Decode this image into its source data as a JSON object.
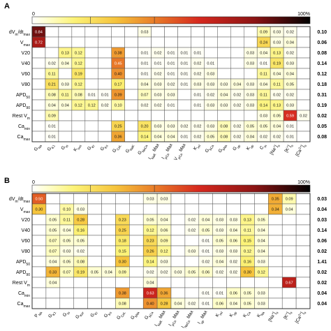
{
  "chart_data": [
    {
      "type": "heatmap",
      "panel": "A",
      "colorbar": {
        "min_label": "0",
        "max_label": "100%"
      },
      "rows": [
        "dV_m/dt_max",
        "V_max",
        "V20",
        "V40",
        "V60",
        "V80",
        "APD_50",
        "APD_90",
        "Rest V_m",
        "Ca_min",
        "Ca_max"
      ],
      "columns": [
        "G_Na",
        "G_K1",
        "G_to",
        "K_sus",
        "G_Kr",
        "G_Ks",
        "G_CaL",
        "G_NaK",
        "G_NaCa",
        "I_NaK Max",
        "I_pCa Max",
        "V_pCa Max",
        "K_rel",
        "G_bCa",
        "G_bNa",
        "G_up",
        "K_up",
        "C_m",
        "[Na+]_o",
        "[K+]_o",
        "[Ca2+]_o"
      ],
      "row_totals": [
        "0.10",
        "0.06",
        "0.08",
        "0.14",
        "0.12",
        "0.18",
        "0.31",
        "0.19",
        "0.02",
        "0.05",
        "0.08"
      ],
      "cells": [
        [
          0,
          0,
          0.84
        ],
        [
          0,
          8,
          0.03
        ],
        [
          0,
          17,
          0.09
        ],
        [
          0,
          18,
          0.03
        ],
        [
          0,
          19,
          0.02
        ],
        [
          1,
          0,
          0.72
        ],
        [
          1,
          17,
          0.24
        ],
        [
          1,
          18,
          0.03
        ],
        [
          1,
          19,
          0.04
        ],
        [
          2,
          2,
          0.13
        ],
        [
          2,
          3,
          0.12
        ],
        [
          2,
          6,
          0.38
        ],
        [
          2,
          8,
          0.01
        ],
        [
          2,
          9,
          0.02
        ],
        [
          2,
          10,
          0.01
        ],
        [
          2,
          11,
          0.01
        ],
        [
          2,
          12,
          0.01
        ],
        [
          2,
          16,
          0.03
        ],
        [
          2,
          17,
          0.04
        ],
        [
          2,
          18,
          0.13
        ],
        [
          2,
          19,
          0.02
        ],
        [
          3,
          1,
          0.02
        ],
        [
          3,
          2,
          0.04
        ],
        [
          3,
          3,
          0.12
        ],
        [
          3,
          6,
          0.45
        ],
        [
          3,
          8,
          0.01
        ],
        [
          3,
          9,
          0.01
        ],
        [
          3,
          10,
          0.01
        ],
        [
          3,
          11,
          0.01
        ],
        [
          3,
          12,
          0.02
        ],
        [
          3,
          13,
          0.01
        ],
        [
          3,
          16,
          0.03
        ],
        [
          3,
          17,
          0.01
        ],
        [
          3,
          18,
          0.19
        ],
        [
          3,
          19,
          0.03
        ],
        [
          4,
          1,
          0.11
        ],
        [
          4,
          3,
          0.19
        ],
        [
          4,
          6,
          0.4
        ],
        [
          4,
          8,
          0.01
        ],
        [
          4,
          9,
          0.02
        ],
        [
          4,
          10,
          0.01
        ],
        [
          4,
          11,
          0.01
        ],
        [
          4,
          12,
          0.02
        ],
        [
          4,
          13,
          0.03
        ],
        [
          4,
          17,
          0.11
        ],
        [
          4,
          18,
          0.04
        ],
        [
          4,
          19,
          0.04
        ],
        [
          5,
          1,
          0.21
        ],
        [
          5,
          2,
          0.03
        ],
        [
          5,
          3,
          0.12
        ],
        [
          5,
          6,
          0.17
        ],
        [
          5,
          8,
          0.04
        ],
        [
          5,
          9,
          0.03
        ],
        [
          5,
          10,
          0.02
        ],
        [
          5,
          11,
          0.01
        ],
        [
          5,
          12,
          0.03
        ],
        [
          5,
          13,
          0.03
        ],
        [
          5,
          14,
          0.03
        ],
        [
          5,
          15,
          0.04
        ],
        [
          5,
          16,
          0.03
        ],
        [
          5,
          17,
          0.04
        ],
        [
          5,
          18,
          0.11
        ],
        [
          5,
          19,
          0.05
        ],
        [
          6,
          1,
          0.08
        ],
        [
          6,
          2,
          0.11
        ],
        [
          6,
          3,
          0.08
        ],
        [
          6,
          4,
          0.01
        ],
        [
          6,
          5,
          0.01
        ],
        [
          6,
          6,
          0.39
        ],
        [
          6,
          8,
          0.07
        ],
        [
          6,
          9,
          0.03
        ],
        [
          6,
          10,
          0.03
        ],
        [
          6,
          12,
          0.01
        ],
        [
          6,
          13,
          0.02
        ],
        [
          6,
          14,
          0.04
        ],
        [
          6,
          15,
          0.02
        ],
        [
          6,
          16,
          0.03
        ],
        [
          6,
          17,
          0.11
        ],
        [
          6,
          18,
          0.02
        ],
        [
          6,
          19,
          0.02
        ],
        [
          7,
          1,
          0.04
        ],
        [
          7,
          2,
          0.04
        ],
        [
          7,
          3,
          0.12
        ],
        [
          7,
          4,
          0.12
        ],
        [
          7,
          5,
          0.02
        ],
        [
          7,
          6,
          0.1
        ],
        [
          7,
          8,
          0.02
        ],
        [
          7,
          9,
          0.02
        ],
        [
          7,
          10,
          0.01
        ],
        [
          7,
          12,
          0.01
        ],
        [
          7,
          13,
          0.03
        ],
        [
          7,
          14,
          0.03
        ],
        [
          7,
          15,
          0.02
        ],
        [
          7,
          16,
          0.03
        ],
        [
          7,
          17,
          0.14
        ],
        [
          7,
          18,
          0.13
        ],
        [
          7,
          19,
          0.03
        ],
        [
          8,
          1,
          0.09
        ],
        [
          8,
          17,
          0.03
        ],
        [
          8,
          18,
          0.05
        ],
        [
          8,
          19,
          0.59
        ],
        [
          8,
          20,
          0.02
        ],
        [
          9,
          1,
          0.01
        ],
        [
          9,
          6,
          0.25
        ],
        [
          9,
          8,
          0.2
        ],
        [
          9,
          9,
          0.03
        ],
        [
          9,
          10,
          0.03
        ],
        [
          9,
          11,
          0.02
        ],
        [
          9,
          12,
          0.02
        ],
        [
          9,
          13,
          0.03
        ],
        [
          9,
          14,
          0.08
        ],
        [
          9,
          15,
          0.02
        ],
        [
          9,
          16,
          0.05
        ],
        [
          9,
          17,
          0.05
        ],
        [
          9,
          18,
          0.04
        ],
        [
          9,
          19,
          0.01
        ],
        [
          10,
          1,
          0.01
        ],
        [
          10,
          6,
          0.36
        ],
        [
          10,
          8,
          0.14
        ],
        [
          10,
          9,
          0.04
        ],
        [
          10,
          10,
          0.04
        ],
        [
          10,
          11,
          0.01
        ],
        [
          10,
          12,
          0.02
        ],
        [
          10,
          13,
          0.05
        ],
        [
          10,
          14,
          0.08
        ],
        [
          10,
          15,
          0.02
        ],
        [
          10,
          16,
          0.04
        ],
        [
          10,
          17,
          0.02
        ],
        [
          10,
          18,
          0.02
        ],
        [
          10,
          19,
          0.01
        ]
      ]
    },
    {
      "type": "heatmap",
      "panel": "B",
      "colorbar": {
        "min_label": "0",
        "max_label": "100%"
      },
      "rows": [
        "dV_m/dt_max",
        "V_max",
        "V20",
        "V40",
        "V60",
        "V80",
        "APD_50",
        "APD_90",
        "Rest V_m",
        "Ca_min",
        "Ca_max"
      ],
      "columns": [
        "P_Na",
        "G_K1",
        "G_to",
        "G_Kur",
        "G_Kr",
        "G_Ks",
        "G_CaL",
        "G_bNa",
        "G_bCa",
        "I_NaK Max",
        "I_pCa Max",
        "I_NaCa Max",
        "I_up Max",
        "K_rel",
        "K_up",
        "K_Ca",
        "K_Na",
        "[Na+]_o",
        "[K+]_o",
        "[Ca2+]_o"
      ],
      "row_totals": [
        "0.03",
        "0.04",
        "0.03",
        "0.14",
        "0.06",
        "0.02",
        "1.41",
        "0.02",
        "0.02",
        "0.04",
        "0.04"
      ],
      "cells": [
        [
          0,
          0,
          0.5
        ],
        [
          0,
          8,
          0.03
        ],
        [
          0,
          9,
          0.03
        ],
        [
          0,
          17,
          0.35
        ],
        [
          0,
          18,
          0.09
        ],
        [
          1,
          0,
          0.3
        ],
        [
          1,
          2,
          0.1
        ],
        [
          1,
          3,
          0.03
        ],
        [
          1,
          17,
          0.34
        ],
        [
          1,
          18,
          0.04
        ],
        [
          2,
          1,
          0.05
        ],
        [
          2,
          2,
          0.11
        ],
        [
          2,
          3,
          0.28
        ],
        [
          2,
          6,
          0.23
        ],
        [
          2,
          8,
          0.05
        ],
        [
          2,
          9,
          0.04
        ],
        [
          2,
          11,
          0.02
        ],
        [
          2,
          12,
          0.04
        ],
        [
          2,
          13,
          0.03
        ],
        [
          2,
          14,
          0.03
        ],
        [
          2,
          15,
          0.13
        ],
        [
          2,
          16,
          0.05
        ],
        [
          3,
          1,
          0.05
        ],
        [
          3,
          2,
          0.04
        ],
        [
          3,
          3,
          0.16
        ],
        [
          3,
          6,
          0.25
        ],
        [
          3,
          8,
          0.12
        ],
        [
          3,
          9,
          0.06
        ],
        [
          3,
          11,
          0.02
        ],
        [
          3,
          12,
          0.05
        ],
        [
          3,
          13,
          0.03
        ],
        [
          3,
          14,
          0.04
        ],
        [
          3,
          15,
          0.11
        ],
        [
          3,
          16,
          0.04
        ],
        [
          4,
          1,
          0.07
        ],
        [
          4,
          2,
          0.05
        ],
        [
          4,
          3,
          0.05
        ],
        [
          4,
          6,
          0.18
        ],
        [
          4,
          8,
          0.23
        ],
        [
          4,
          9,
          0.09
        ],
        [
          4,
          12,
          0.01
        ],
        [
          4,
          13,
          0.05
        ],
        [
          4,
          14,
          0.06
        ],
        [
          4,
          15,
          0.15
        ],
        [
          4,
          16,
          0.04
        ],
        [
          5,
          1,
          0.07
        ],
        [
          5,
          2,
          0.03
        ],
        [
          5,
          3,
          0.02
        ],
        [
          5,
          6,
          0.15
        ],
        [
          5,
          8,
          0.26
        ],
        [
          5,
          9,
          0.12
        ],
        [
          5,
          11,
          0.03
        ],
        [
          5,
          12,
          0.01
        ],
        [
          5,
          13,
          0.03
        ],
        [
          5,
          14,
          0.03
        ],
        [
          5,
          15,
          0.12
        ],
        [
          5,
          16,
          0.04
        ],
        [
          6,
          1,
          0.04
        ],
        [
          6,
          2,
          0.05
        ],
        [
          6,
          3,
          0.08
        ],
        [
          6,
          6,
          0.3
        ],
        [
          6,
          8,
          0.14
        ],
        [
          6,
          9,
          0.03
        ],
        [
          6,
          12,
          0.02
        ],
        [
          6,
          13,
          0.04
        ],
        [
          6,
          14,
          0.02
        ],
        [
          6,
          15,
          0.16
        ],
        [
          6,
          16,
          0.03
        ],
        [
          7,
          1,
          0.33
        ],
        [
          7,
          2,
          0.07
        ],
        [
          7,
          3,
          0.19
        ],
        [
          7,
          4,
          0.05
        ],
        [
          7,
          5,
          0.04
        ],
        [
          7,
          6,
          0.09
        ],
        [
          7,
          8,
          0.02
        ],
        [
          7,
          9,
          0.02
        ],
        [
          7,
          10,
          0.03
        ],
        [
          7,
          11,
          0.05
        ],
        [
          7,
          12,
          0.06
        ],
        [
          7,
          13,
          0.02
        ],
        [
          7,
          14,
          0.02
        ],
        [
          7,
          15,
          0.3
        ],
        [
          7,
          16,
          0.12
        ],
        [
          8,
          1,
          0.04
        ],
        [
          8,
          8,
          0.04
        ],
        [
          8,
          18,
          0.67
        ],
        [
          9,
          6,
          0.38
        ],
        [
          9,
          8,
          0.63
        ],
        [
          9,
          9,
          0.36
        ],
        [
          9,
          12,
          0.01
        ],
        [
          9,
          13,
          0.01
        ],
        [
          9,
          14,
          0.06
        ],
        [
          9,
          15,
          0.05
        ],
        [
          9,
          16,
          0.03
        ],
        [
          10,
          6,
          0.08
        ],
        [
          10,
          8,
          0.4
        ],
        [
          10,
          9,
          0.28
        ],
        [
          10,
          10,
          0.04
        ],
        [
          10,
          11,
          0.02
        ],
        [
          10,
          12,
          0.01
        ],
        [
          10,
          13,
          0.06
        ],
        [
          10,
          14,
          0.04
        ],
        [
          10,
          15,
          0.05
        ],
        [
          10,
          16,
          0.03
        ]
      ]
    }
  ]
}
